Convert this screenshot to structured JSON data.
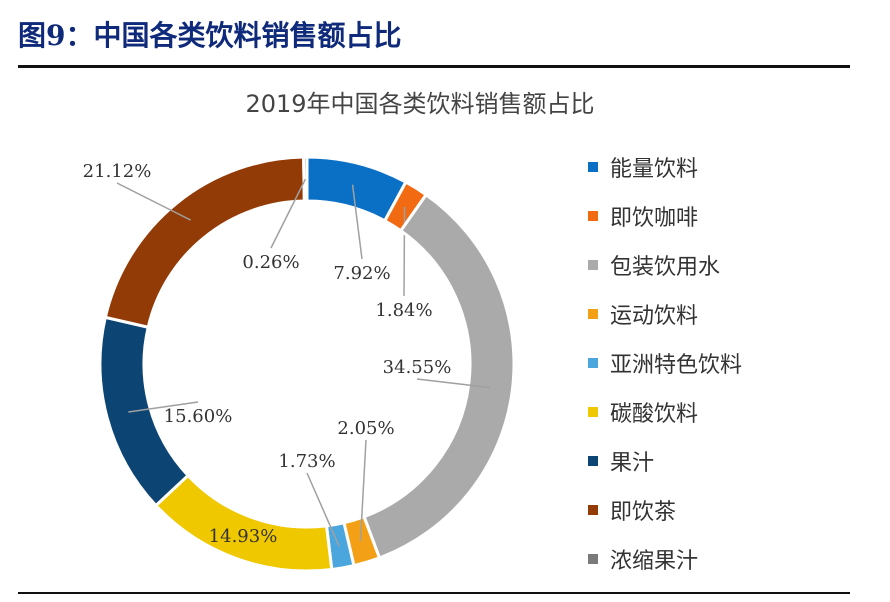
{
  "figure": {
    "title": "图9：中国各类饮料销售额占比"
  },
  "chart_data": {
    "type": "pie",
    "title": "2019年中国各类饮料销售额占比",
    "donut": true,
    "legend_position": "right",
    "categories": [
      "能量饮料",
      "即饮咖啡",
      "包装饮用水",
      "运动饮料",
      "亚洲特色饮料",
      "碳酸饮料",
      "果汁",
      "即饮茶",
      "浓缩果汁"
    ],
    "values": [
      7.92,
      1.84,
      34.55,
      2.05,
      1.73,
      14.93,
      15.6,
      21.12,
      0.26
    ],
    "labels": [
      "7.92%",
      "1.84%",
      "34.55%",
      "2.05%",
      "1.73%",
      "14.93%",
      "15.60%",
      "21.12%",
      "0.26%"
    ],
    "colors": [
      "#0a70c6",
      "#f26b12",
      "#aaaaaa",
      "#f4a016",
      "#4aa6dc",
      "#f0c800",
      "#0c4474",
      "#933b06",
      "#7a7a7a"
    ]
  }
}
